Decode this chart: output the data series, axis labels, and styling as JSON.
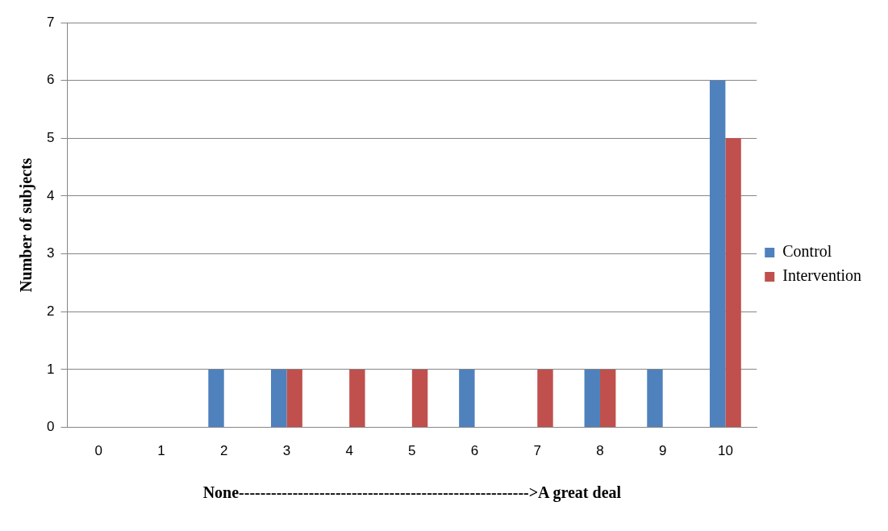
{
  "chart_data": {
    "type": "bar",
    "ylabel": "Number of subjects",
    "xlabel": "None------------------------------------------------------>A great deal",
    "categories": [
      "0",
      "1",
      "2",
      "3",
      "4",
      "5",
      "6",
      "7",
      "8",
      "9",
      "10"
    ],
    "series": [
      {
        "name": "Control",
        "color": "#4f81bd",
        "values": [
          0,
          0,
          1,
          1,
          0,
          0,
          1,
          0,
          1,
          1,
          6
        ]
      },
      {
        "name": "Intervention",
        "color": "#c0504d",
        "values": [
          0,
          0,
          0,
          1,
          1,
          1,
          0,
          1,
          1,
          0,
          5
        ]
      }
    ],
    "ylim": [
      0,
      7
    ],
    "yticks": [
      0,
      1,
      2,
      3,
      4,
      5,
      6,
      7
    ],
    "grid": "y",
    "legend": "right"
  }
}
